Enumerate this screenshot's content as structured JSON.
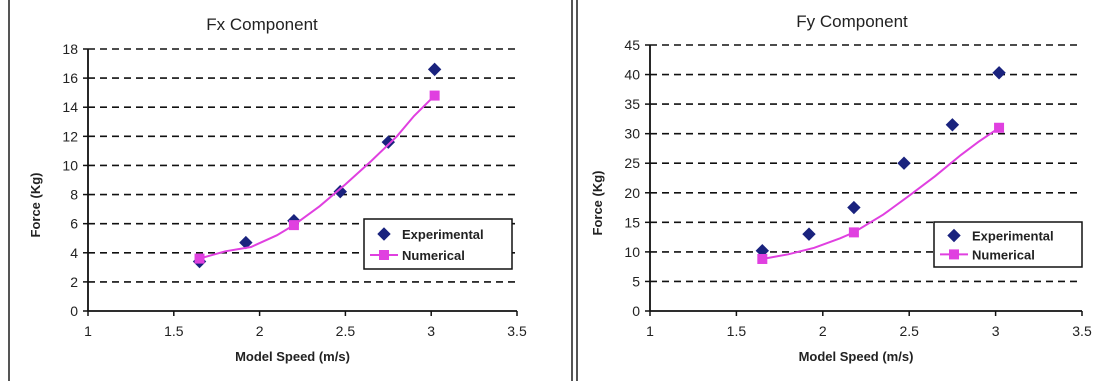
{
  "charts": [
    {
      "title": "Fx Component",
      "xlabel": "Model Speed (m/s)",
      "ylabel": "Force (Kg)",
      "xlim": [
        1,
        3.5
      ],
      "ylim": [
        0,
        18
      ],
      "xticks": [
        "1",
        "1.5",
        "2",
        "2.5",
        "3",
        "3.5"
      ],
      "yticks": [
        "0",
        "2",
        "4",
        "6",
        "8",
        "10",
        "12",
        "14",
        "16",
        "18"
      ],
      "legend": {
        "position": "right-center",
        "experimental": "Experimental",
        "numerical": "Numerical"
      },
      "colors": {
        "experimental": "#1a237e",
        "numerical": "#e040e0"
      }
    },
    {
      "title": "Fy Component",
      "xlabel": "Model Speed (m/s)",
      "ylabel": "Force (Kg)",
      "xlim": [
        1,
        3.5
      ],
      "ylim": [
        0,
        45
      ],
      "xticks": [
        "1",
        "1.5",
        "2",
        "2.5",
        "3",
        "3.5"
      ],
      "yticks": [
        "0",
        "5",
        "10",
        "15",
        "20",
        "25",
        "30",
        "35",
        "40",
        "45"
      ],
      "legend": {
        "position": "right-center",
        "experimental": "Experimental",
        "numerical": "Numerical"
      },
      "colors": {
        "experimental": "#1a237e",
        "numerical": "#e040e0"
      }
    }
  ],
  "chart_data": [
    {
      "type": "scatter",
      "title": "Fx Component",
      "xlabel": "Model Speed (m/s)",
      "ylabel": "Force (Kg)",
      "xlim": [
        1,
        3.5
      ],
      "ylim": [
        0,
        18
      ],
      "grid": true,
      "series": [
        {
          "name": "Experimental",
          "style": "markers",
          "marker": "diamond",
          "x": [
            1.65,
            1.92,
            2.2,
            2.47,
            2.75,
            3.02
          ],
          "y": [
            3.4,
            4.7,
            6.2,
            8.2,
            11.6,
            16.6
          ]
        },
        {
          "name": "Numerical",
          "style": "line-markers",
          "marker": "square",
          "x": [
            1.65,
            2.2,
            3.02
          ],
          "y": [
            3.6,
            5.9,
            14.8
          ],
          "curve_x": [
            1.65,
            1.8,
            1.95,
            2.1,
            2.2,
            2.35,
            2.5,
            2.65,
            2.8,
            2.9,
            3.02
          ],
          "curve_y": [
            3.6,
            4.1,
            4.4,
            5.2,
            5.9,
            7.2,
            8.7,
            10.3,
            12.0,
            13.4,
            14.8
          ]
        }
      ]
    },
    {
      "type": "scatter",
      "title": "Fy Component",
      "xlabel": "Model Speed (m/s)",
      "ylabel": "Force (Kg)",
      "xlim": [
        1,
        3.5
      ],
      "ylim": [
        0,
        45
      ],
      "grid": true,
      "series": [
        {
          "name": "Experimental",
          "style": "markers",
          "marker": "diamond",
          "x": [
            1.65,
            1.92,
            2.18,
            2.47,
            2.75,
            3.02
          ],
          "y": [
            10.2,
            13.0,
            17.5,
            25.0,
            31.5,
            40.3
          ]
        },
        {
          "name": "Numerical",
          "style": "line-markers",
          "marker": "square",
          "x": [
            1.65,
            2.18,
            3.02
          ],
          "y": [
            8.8,
            13.3,
            31.0
          ],
          "curve_x": [
            1.65,
            1.8,
            1.95,
            2.1,
            2.18,
            2.35,
            2.5,
            2.65,
            2.8,
            2.9,
            3.02
          ],
          "curve_y": [
            8.8,
            9.6,
            10.7,
            12.3,
            13.3,
            16.3,
            19.5,
            22.8,
            26.4,
            28.6,
            31.0
          ]
        }
      ]
    }
  ]
}
